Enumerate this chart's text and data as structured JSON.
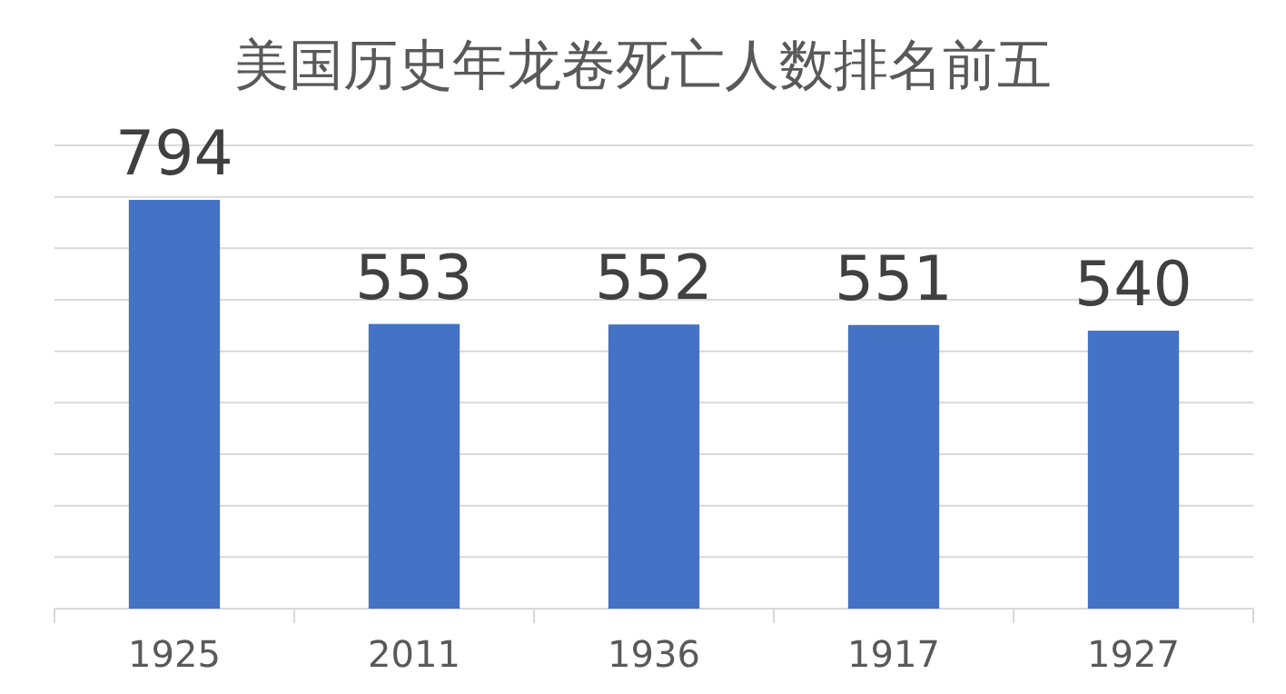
{
  "chart_data": {
    "type": "bar",
    "title": "美国历史年龙卷死亡人数排名前五",
    "categories": [
      "1925",
      "2011",
      "1936",
      "1917",
      "1927"
    ],
    "values": [
      794,
      553,
      552,
      551,
      540
    ],
    "color": "#4472c4",
    "ylim": [
      0,
      900
    ],
    "yticks": [
      0,
      100,
      200,
      300,
      400,
      500,
      600,
      700,
      800,
      900
    ],
    "tick_labels": "x",
    "grid": "y",
    "data_labels": true
  }
}
